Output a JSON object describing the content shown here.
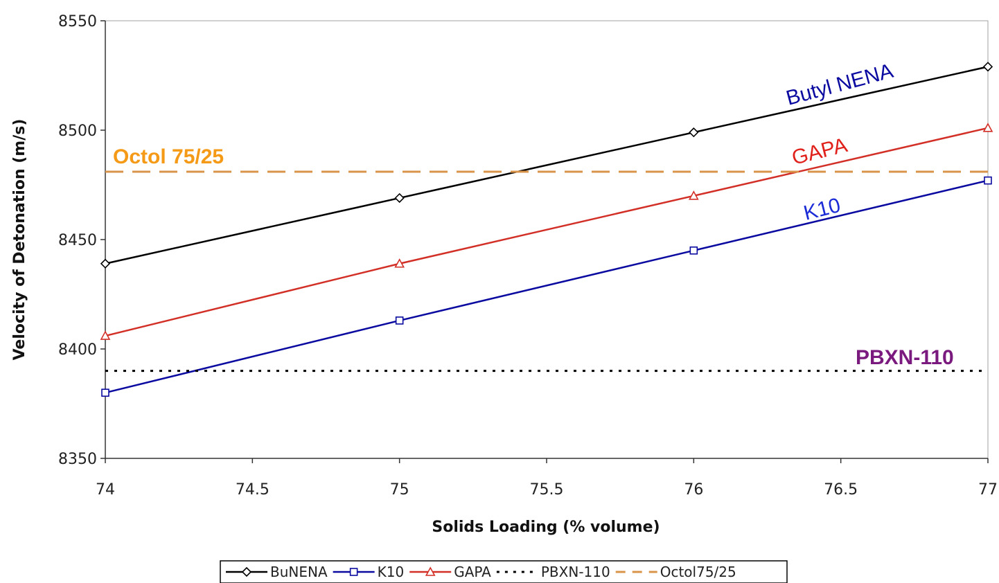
{
  "chart_data": {
    "type": "line",
    "title": "",
    "xlabel": "Solids Loading (% volume)",
    "ylabel": "Velocity of Detonation (m/s)",
    "xlim": [
      74,
      77
    ],
    "ylim": [
      8350,
      8550
    ],
    "x_ticks": [
      "74",
      "74.5",
      "75",
      "75.5",
      "76",
      "76.5",
      "77"
    ],
    "y_ticks": [
      "8350",
      "8400",
      "8450",
      "8500",
      "8550"
    ],
    "grid": false,
    "legend_position": "bottom",
    "series": [
      {
        "name": "BuNENA",
        "color": "#000000",
        "marker": "diamond",
        "dash": "solid",
        "x": [
          74,
          75,
          76,
          77
        ],
        "y": [
          8439,
          8469,
          8499,
          8529
        ]
      },
      {
        "name": "K10",
        "color": "#0a0aa0",
        "marker": "square",
        "dash": "solid",
        "x": [
          74,
          75,
          76,
          77
        ],
        "y": [
          8380,
          8413,
          8445,
          8477
        ]
      },
      {
        "name": "GAPA",
        "color": "#d22f27",
        "marker": "triangle",
        "dash": "solid",
        "x": [
          74,
          75,
          76,
          77
        ],
        "y": [
          8406,
          8439,
          8470,
          8501
        ]
      },
      {
        "name": "PBXN-110",
        "color": "#000000",
        "marker": "none",
        "dash": "dot",
        "x": [
          74,
          77
        ],
        "y": [
          8390,
          8390
        ]
      },
      {
        "name": "Octol 75/25",
        "color": "#d9944a",
        "marker": "none",
        "dash": "dash",
        "x": [
          74,
          77
        ],
        "y": [
          8481,
          8481
        ]
      }
    ],
    "legend": [
      "BuNENA",
      "K10",
      "GAPA",
      "PBXN-110",
      "Octol75/25"
    ],
    "annotations": [
      {
        "text": "Butyl NENA",
        "color": "#0a0aa0",
        "bold": false
      },
      {
        "text": "GAPA",
        "color": "#e0201a",
        "bold": false
      },
      {
        "text": "K10",
        "color": "#1b2bd6",
        "bold": false
      },
      {
        "text": "Octol 75/25",
        "color": "#f59a16",
        "bold": true
      },
      {
        "text": "PBXN-110",
        "color": "#7a1a7e",
        "bold": true
      }
    ]
  }
}
